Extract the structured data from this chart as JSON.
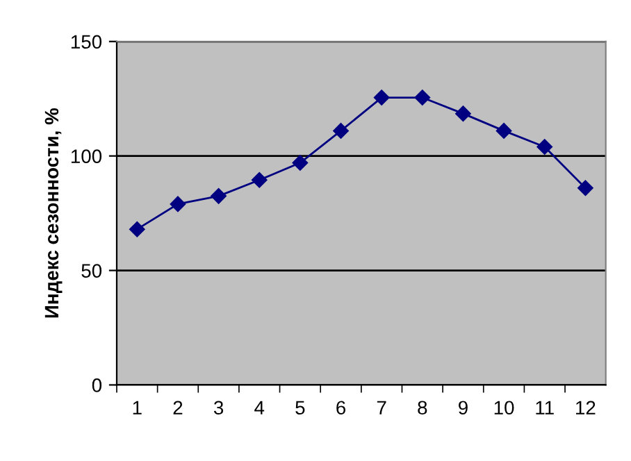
{
  "chart_data": {
    "type": "line",
    "ylabel": "Индекс сезонности, %",
    "categories": [
      "1",
      "2",
      "3",
      "4",
      "5",
      "6",
      "7",
      "8",
      "9",
      "10",
      "11",
      "12"
    ],
    "series": [
      {
        "color": "#000080",
        "values": [
          68,
          79,
          82.5,
          89.5,
          97,
          111,
          125.5,
          125.5,
          118.5,
          111,
          104,
          86
        ]
      }
    ],
    "ylim": [
      0,
      150
    ],
    "yticks": [
      0,
      50,
      100,
      150
    ],
    "grid": "y",
    "marker": "diamond",
    "line_style": "solid"
  }
}
